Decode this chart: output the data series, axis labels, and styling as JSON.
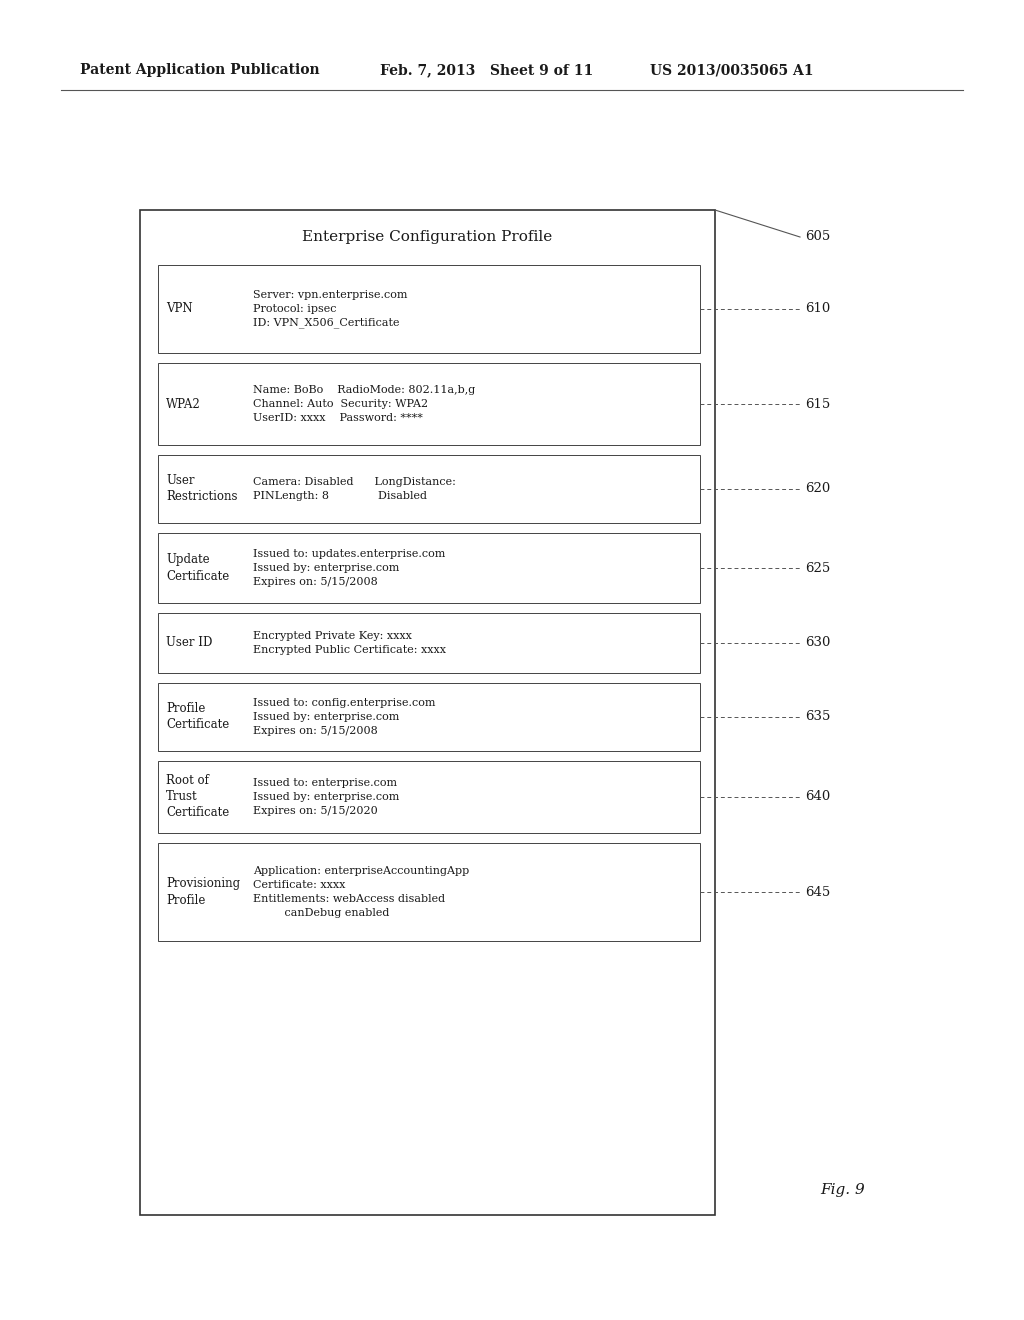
{
  "bg_color": "#ffffff",
  "header_left": "Patent Application Publication",
  "header_mid": "Feb. 7, 2013   Sheet 9 of 11",
  "header_right": "US 2013/0035065 A1",
  "fig_label": "Fig. 9",
  "title": "Enterprise Configuration Profile",
  "boxes": [
    {
      "id": "vpn",
      "label": "VPN",
      "content_lines": [
        "Server: vpn.enterprise.com",
        "Protocol: ipsec",
        "ID: VPN_X506_Certificate"
      ],
      "num_content_lines": 3
    },
    {
      "id": "wpa2",
      "label": "WPA2",
      "content_lines": [
        "Name: BoBo    RadioMode: 802.11a,b,g",
        "Channel: Auto  Security: WPA2",
        "UserID: xxxx    Password: ****"
      ],
      "num_content_lines": 3
    },
    {
      "id": "user_restrict",
      "label": "User\nRestrictions",
      "content_lines": [
        "Camera: Disabled      LongDistance:",
        "PINLength: 8              Disabled"
      ],
      "num_content_lines": 2
    },
    {
      "id": "update_cert",
      "label": "Update\nCertificate",
      "content_lines": [
        "Issued to: updates.enterprise.com",
        "Issued by: enterprise.com",
        "Expires on: 5/15/2008"
      ],
      "num_content_lines": 3
    },
    {
      "id": "user_id",
      "label": "User ID",
      "content_lines": [
        "Encrypted Private Key: xxxx",
        "Encrypted Public Certificate: xxxx"
      ],
      "num_content_lines": 2
    },
    {
      "id": "profile_cert",
      "label": "Profile\nCertificate",
      "content_lines": [
        "Issued to: config.enterprise.com",
        "Issued by: enterprise.com",
        "Expires on: 5/15/2008"
      ],
      "num_content_lines": 3
    },
    {
      "id": "root_trust",
      "label": "Root of\nTrust\nCertificate",
      "content_lines": [
        "Issued to: enterprise.com",
        "Issued by: enterprise.com",
        "Expires on: 5/15/2020"
      ],
      "num_content_lines": 3
    },
    {
      "id": "provisioning",
      "label": "Provisioning\nProfile",
      "content_lines": [
        "Application: enterpriseAccountingApp",
        "Certificate: xxxx",
        "Entitlements: webAccess disabled",
        "         canDebug enabled"
      ],
      "num_content_lines": 4
    }
  ],
  "callout_numbers": [
    "605",
    "610",
    "615",
    "620",
    "625",
    "630",
    "635",
    "640",
    "645"
  ],
  "font_size_header": 10,
  "font_size_title": 11,
  "font_size_label": 8.5,
  "font_size_content": 8,
  "font_size_callout": 9.5,
  "font_size_fig": 11
}
